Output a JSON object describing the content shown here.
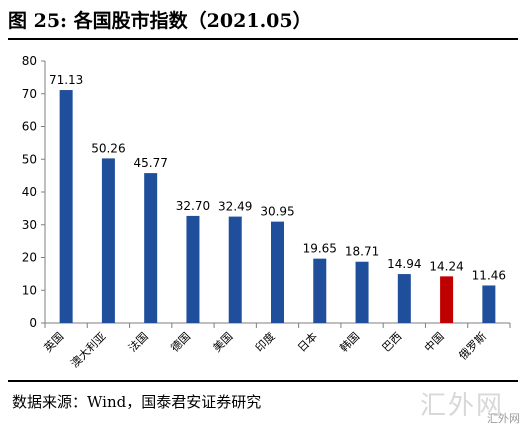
{
  "figure": {
    "title": "图 25:  各国股市指数（2021.05）",
    "source": "数据来源：Wind，国泰君安证券研究",
    "watermark": "汇外网",
    "watermark_sub": "汇外网"
  },
  "chart_data": {
    "type": "bar",
    "categories": [
      "英国",
      "澳大利亚",
      "法国",
      "德国",
      "美国",
      "印度",
      "日本",
      "韩国",
      "巴西",
      "中国",
      "俄罗斯"
    ],
    "values": [
      71.13,
      50.26,
      45.77,
      32.7,
      32.49,
      30.95,
      19.65,
      18.71,
      14.94,
      14.24,
      11.46
    ],
    "value_labels": [
      "71.13",
      "50.26",
      "45.77",
      "32.70",
      "32.49",
      "30.95",
      "19.65",
      "18.71",
      "14.94",
      "14.24",
      "11.46"
    ],
    "highlight_category": "中国",
    "colors": {
      "bar": "#1f4e9b",
      "highlight": "#c00000",
      "axis": "#7f7f7f"
    },
    "ylim": [
      0,
      80
    ],
    "yticks": [
      0,
      10,
      20,
      30,
      40,
      50,
      60,
      70,
      80
    ],
    "grid": false,
    "legend": "none",
    "xlabel": "",
    "ylabel": ""
  }
}
